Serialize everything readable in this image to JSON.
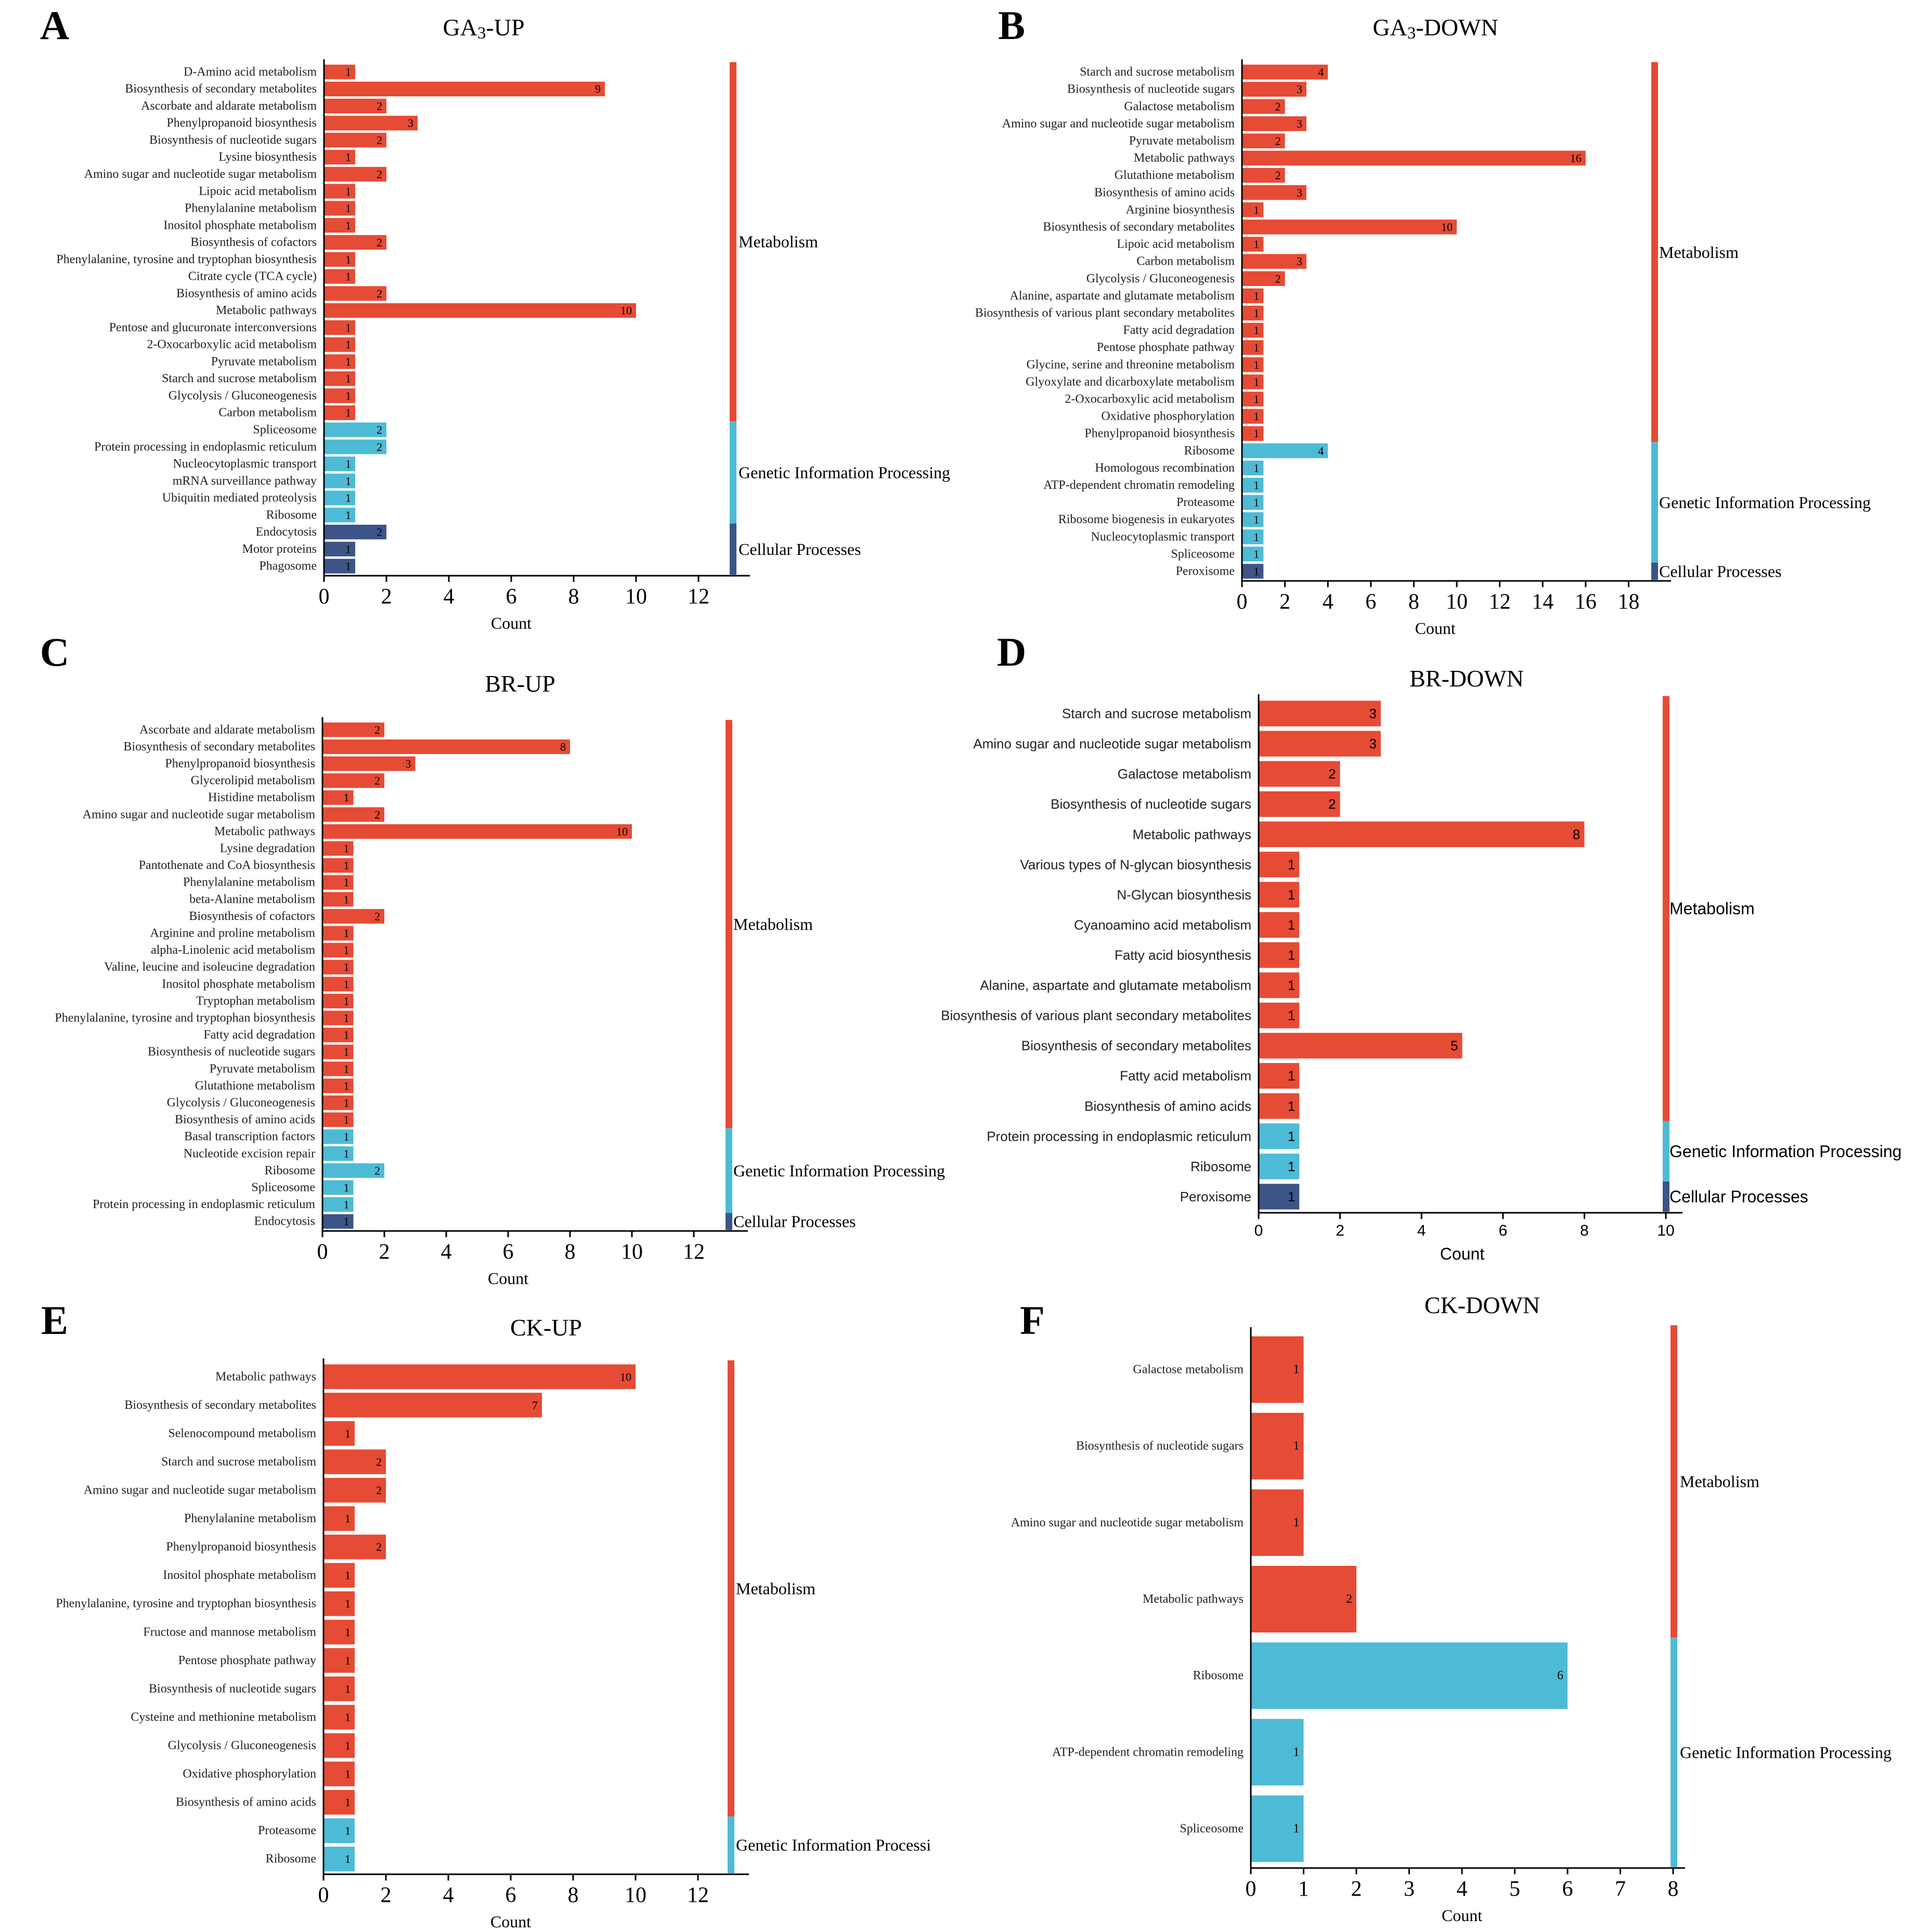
{
  "figure": {
    "colors": {
      "Metabolism": "#E64B35",
      "Genetic Information Processing": "#4DBBD5",
      "Cellular Processes": "#3C5488",
      "axis": "#000000",
      "background": "#ffffff"
    }
  },
  "chart_data": [
    {
      "panel": "A",
      "type": "bar",
      "orientation": "horizontal",
      "title": "GA3-UP",
      "title_main": "GA",
      "title_sub": "3",
      "title_rest": "-UP",
      "xlabel": "Count",
      "xlim": [
        0,
        13.5
      ],
      "xticks": [
        0,
        2,
        4,
        6,
        8,
        10,
        12
      ],
      "font": "serif",
      "categories": [
        "D-Amino acid metabolism",
        "Biosynthesis of secondary metabolites",
        "Ascorbate and aldarate metabolism",
        "Phenylpropanoid biosynthesis",
        "Biosynthesis of nucleotide sugars",
        "Lysine biosynthesis",
        "Amino sugar and nucleotide sugar metabolism",
        "Lipoic acid metabolism",
        "Phenylalanine metabolism",
        "Inositol phosphate metabolism",
        "Biosynthesis of cofactors",
        "Phenylalanine, tyrosine and tryptophan biosynthesis",
        "Citrate cycle (TCA cycle)",
        "Biosynthesis of amino acids",
        "Metabolic pathways",
        "Pentose and glucuronate interconversions",
        "2-Oxocarboxylic acid metabolism",
        "Pyruvate metabolism",
        "Starch and sucrose metabolism",
        "Glycolysis / Gluconeogenesis",
        "Carbon metabolism",
        "Spliceosome",
        "Protein processing in endoplasmic reticulum",
        "Nucleocytoplasmic transport",
        "mRNA surveillance pathway",
        "Ubiquitin mediated proteolysis",
        "Ribosome",
        "Endocytosis",
        "Motor proteins",
        "Phagosome"
      ],
      "values": [
        1,
        9,
        2,
        3,
        2,
        1,
        2,
        1,
        1,
        1,
        2,
        1,
        1,
        2,
        10,
        1,
        1,
        1,
        1,
        1,
        1,
        2,
        2,
        1,
        1,
        1,
        1,
        2,
        1,
        1
      ],
      "groups": [
        "Metabolism",
        "Metabolism",
        "Metabolism",
        "Metabolism",
        "Metabolism",
        "Metabolism",
        "Metabolism",
        "Metabolism",
        "Metabolism",
        "Metabolism",
        "Metabolism",
        "Metabolism",
        "Metabolism",
        "Metabolism",
        "Metabolism",
        "Metabolism",
        "Metabolism",
        "Metabolism",
        "Metabolism",
        "Metabolism",
        "Metabolism",
        "Genetic Information Processing",
        "Genetic Information Processing",
        "Genetic Information Processing",
        "Genetic Information Processing",
        "Genetic Information Processing",
        "Genetic Information Processing",
        "Cellular Processes",
        "Cellular Processes",
        "Cellular Processes"
      ],
      "category_legend": [
        "Metabolism",
        "Genetic Information Processing",
        "Cellular Processes"
      ]
    },
    {
      "panel": "B",
      "type": "bar",
      "orientation": "horizontal",
      "title": "GA3-DOWN",
      "title_main": "GA",
      "title_sub": "3",
      "title_rest": "-DOWN",
      "xlabel": "Count",
      "xlim": [
        0,
        19.5
      ],
      "xticks": [
        0,
        2,
        4,
        6,
        8,
        10,
        12,
        14,
        16,
        18
      ],
      "font": "serif",
      "categories": [
        "Starch and sucrose metabolism",
        "Biosynthesis of nucleotide sugars",
        "Galactose metabolism",
        "Amino sugar and nucleotide sugar metabolism",
        "Pyruvate metabolism",
        "Metabolic pathways",
        "Glutathione metabolism",
        "Biosynthesis of amino acids",
        "Arginine biosynthesis",
        "Biosynthesis of secondary metabolites",
        "Lipoic acid metabolism",
        "Carbon metabolism",
        "Glycolysis / Gluconeogenesis",
        "Alanine, aspartate and glutamate metabolism",
        "Biosynthesis of various plant secondary metabolites",
        "Fatty acid degradation",
        "Pentose phosphate pathway",
        "Glycine, serine and threonine metabolism",
        "Glyoxylate and dicarboxylate metabolism",
        "2-Oxocarboxylic acid metabolism",
        "Oxidative phosphorylation",
        "Phenylpropanoid biosynthesis",
        "Ribosome",
        "Homologous recombination",
        "ATP-dependent chromatin remodeling",
        "Proteasome",
        "Ribosome biogenesis in eukaryotes",
        "Nucleocytoplasmic transport",
        "Spliceosome",
        "Peroxisome"
      ],
      "values": [
        4,
        3,
        2,
        3,
        2,
        16,
        2,
        3,
        1,
        10,
        1,
        3,
        2,
        1,
        1,
        1,
        1,
        1,
        1,
        1,
        1,
        1,
        4,
        1,
        1,
        1,
        1,
        1,
        1,
        1
      ],
      "groups": [
        "Metabolism",
        "Metabolism",
        "Metabolism",
        "Metabolism",
        "Metabolism",
        "Metabolism",
        "Metabolism",
        "Metabolism",
        "Metabolism",
        "Metabolism",
        "Metabolism",
        "Metabolism",
        "Metabolism",
        "Metabolism",
        "Metabolism",
        "Metabolism",
        "Metabolism",
        "Metabolism",
        "Metabolism",
        "Metabolism",
        "Metabolism",
        "Metabolism",
        "Genetic Information Processing",
        "Genetic Information Processing",
        "Genetic Information Processing",
        "Genetic Information Processing",
        "Genetic Information Processing",
        "Genetic Information Processing",
        "Genetic Information Processing",
        "Cellular Processes"
      ],
      "category_legend": [
        "Metabolism",
        "Genetic Information Processing",
        "Cellular Processes"
      ]
    },
    {
      "panel": "C",
      "type": "bar",
      "orientation": "horizontal",
      "title": "BR-UP",
      "xlabel": "Count",
      "xlim": [
        0,
        13
      ],
      "xticks": [
        0,
        2,
        4,
        6,
        8,
        10,
        12
      ],
      "font": "serif",
      "categories": [
        "Ascorbate and aldarate metabolism",
        "Biosynthesis of secondary metabolites",
        "Phenylpropanoid biosynthesis",
        "Glycerolipid metabolism",
        "Histidine metabolism",
        "Amino sugar and nucleotide sugar metabolism",
        "Metabolic pathways",
        "Lysine degradation",
        "Pantothenate and CoA biosynthesis",
        "Phenylalanine metabolism",
        "beta-Alanine metabolism",
        "Biosynthesis of cofactors",
        "Arginine and proline metabolism",
        "alpha-Linolenic acid metabolism",
        "Valine, leucine and isoleucine degradation",
        "Inositol phosphate metabolism",
        "Tryptophan metabolism",
        "Phenylalanine, tyrosine and tryptophan biosynthesis",
        "Fatty acid degradation",
        "Biosynthesis of nucleotide sugars",
        "Pyruvate metabolism",
        "Glutathione metabolism",
        "Glycolysis / Gluconeogenesis",
        "Biosynthesis of amino acids",
        "Basal transcription factors",
        "Nucleotide excision repair",
        "Ribosome",
        "Spliceosome",
        "Protein processing in endoplasmic reticulum",
        "Endocytosis"
      ],
      "values": [
        2,
        8,
        3,
        2,
        1,
        2,
        10,
        1,
        1,
        1,
        1,
        2,
        1,
        1,
        1,
        1,
        1,
        1,
        1,
        1,
        1,
        1,
        1,
        1,
        1,
        1,
        2,
        1,
        1,
        1
      ],
      "groups": [
        "Metabolism",
        "Metabolism",
        "Metabolism",
        "Metabolism",
        "Metabolism",
        "Metabolism",
        "Metabolism",
        "Metabolism",
        "Metabolism",
        "Metabolism",
        "Metabolism",
        "Metabolism",
        "Metabolism",
        "Metabolism",
        "Metabolism",
        "Metabolism",
        "Metabolism",
        "Metabolism",
        "Metabolism",
        "Metabolism",
        "Metabolism",
        "Metabolism",
        "Metabolism",
        "Metabolism",
        "Genetic Information Processing",
        "Genetic Information Processing",
        "Genetic Information Processing",
        "Genetic Information Processing",
        "Genetic Information Processing",
        "Cellular Processes"
      ],
      "category_legend": [
        "Metabolism",
        "Genetic Information Processing",
        "Cellular Processes"
      ]
    },
    {
      "panel": "D",
      "type": "bar",
      "orientation": "horizontal",
      "title": "BR-DOWN",
      "xlabel": "Count",
      "xlim": [
        0,
        10.5
      ],
      "xticks": [
        0,
        2,
        4,
        6,
        8,
        10
      ],
      "font": "sans",
      "categories": [
        "Starch and sucrose metabolism",
        "Amino sugar and nucleotide sugar metabolism",
        "Galactose metabolism",
        "Biosynthesis of nucleotide sugars",
        "Metabolic pathways",
        "Various types of N-glycan biosynthesis",
        "N-Glycan biosynthesis",
        "Cyanoamino acid metabolism",
        "Fatty acid biosynthesis",
        "Alanine, aspartate and glutamate metabolism",
        "Biosynthesis of various plant secondary metabolites",
        "Biosynthesis of secondary metabolites",
        "Fatty acid metabolism",
        "Biosynthesis of amino acids",
        "Protein processing in endoplasmic reticulum",
        "Ribosome",
        "Peroxisome"
      ],
      "values": [
        3,
        3,
        2,
        2,
        8,
        1,
        1,
        1,
        1,
        1,
        1,
        5,
        1,
        1,
        1,
        1,
        1
      ],
      "groups": [
        "Metabolism",
        "Metabolism",
        "Metabolism",
        "Metabolism",
        "Metabolism",
        "Metabolism",
        "Metabolism",
        "Metabolism",
        "Metabolism",
        "Metabolism",
        "Metabolism",
        "Metabolism",
        "Metabolism",
        "Metabolism",
        "Genetic Information Processing",
        "Genetic Information Processing",
        "Cellular Processes"
      ],
      "category_legend": [
        "Metabolism",
        "Genetic Information Processing",
        "Cellular Processes"
      ]
    },
    {
      "panel": "E",
      "type": "bar",
      "orientation": "horizontal",
      "title": "CK-UP",
      "xlabel": "Count",
      "xlim": [
        0,
        13.5
      ],
      "xticks": [
        0,
        2,
        4,
        6,
        8,
        10,
        12
      ],
      "font": "serif",
      "categories": [
        "Metabolic pathways",
        "Biosynthesis of secondary metabolites",
        "Selenocompound metabolism",
        "Starch and sucrose metabolism",
        "Amino sugar and nucleotide sugar metabolism",
        "Phenylalanine metabolism",
        "Phenylpropanoid biosynthesis",
        "Inositol phosphate metabolism",
        "Phenylalanine, tyrosine and tryptophan biosynthesis",
        "Fructose and mannose metabolism",
        "Pentose phosphate pathway",
        "Biosynthesis of nucleotide sugars",
        "Cysteine and methionine metabolism",
        "Glycolysis / Gluconeogenesis",
        "Oxidative phosphorylation",
        "Biosynthesis of amino acids",
        "Proteasome",
        "Ribosome"
      ],
      "values": [
        10,
        7,
        1,
        2,
        2,
        1,
        2,
        1,
        1,
        1,
        1,
        1,
        1,
        1,
        1,
        1,
        1,
        1
      ],
      "groups": [
        "Metabolism",
        "Metabolism",
        "Metabolism",
        "Metabolism",
        "Metabolism",
        "Metabolism",
        "Metabolism",
        "Metabolism",
        "Metabolism",
        "Metabolism",
        "Metabolism",
        "Metabolism",
        "Metabolism",
        "Metabolism",
        "Metabolism",
        "Metabolism",
        "Genetic Information Processing",
        "Genetic Information Processing"
      ],
      "category_legend": [
        "Metabolism",
        "Genetic Information Processi"
      ]
    },
    {
      "panel": "F",
      "type": "bar",
      "orientation": "horizontal",
      "title": "CK-DOWN",
      "xlabel": "Count",
      "xlim": [
        0,
        8
      ],
      "xticks": [
        0,
        1,
        2,
        3,
        4,
        5,
        6,
        7,
        8
      ],
      "font": "serif",
      "categories": [
        "Galactose metabolism",
        "Biosynthesis of nucleotide sugars",
        "Amino sugar and nucleotide sugar metabolism",
        "Metabolic pathways",
        "Ribosome",
        "ATP-dependent chromatin remodeling",
        "Spliceosome"
      ],
      "values": [
        1,
        1,
        1,
        2,
        6,
        1,
        1
      ],
      "groups": [
        "Metabolism",
        "Metabolism",
        "Metabolism",
        "Metabolism",
        "Genetic Information Processing",
        "Genetic Information Processing",
        "Genetic Information Processing"
      ],
      "category_legend": [
        "Metabolism",
        "Genetic Information Processing"
      ]
    }
  ]
}
